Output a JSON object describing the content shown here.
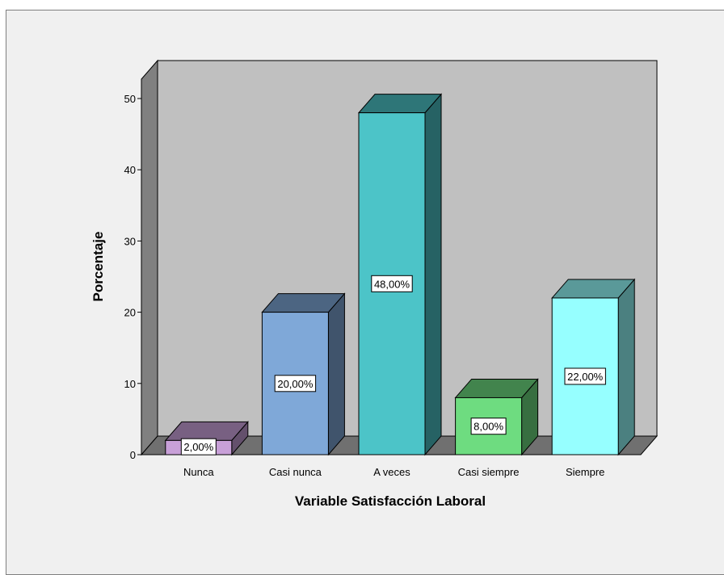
{
  "chart_data": {
    "type": "bar",
    "categories": [
      "Nunca",
      "Casi nunca",
      "A veces",
      "Casi siempre",
      "Siempre"
    ],
    "values": [
      2,
      20,
      48,
      8,
      22
    ],
    "data_labels": [
      "2,00%",
      "20,00%",
      "48,00%",
      "8,00%",
      "22,00%"
    ],
    "xlabel": "Variable Satisfacción Laboral",
    "ylabel": "Porcentaje",
    "ylim": [
      0,
      50
    ],
    "yticks": [
      0,
      10,
      20,
      30,
      40,
      50
    ],
    "style": "3d",
    "colors": [
      "#c8a0d8",
      "#7fa8d8",
      "#4cc4c8",
      "#6edc80",
      "#96ffff"
    ],
    "wall_color": "#c0c0c0",
    "floor_color": "#707070"
  }
}
